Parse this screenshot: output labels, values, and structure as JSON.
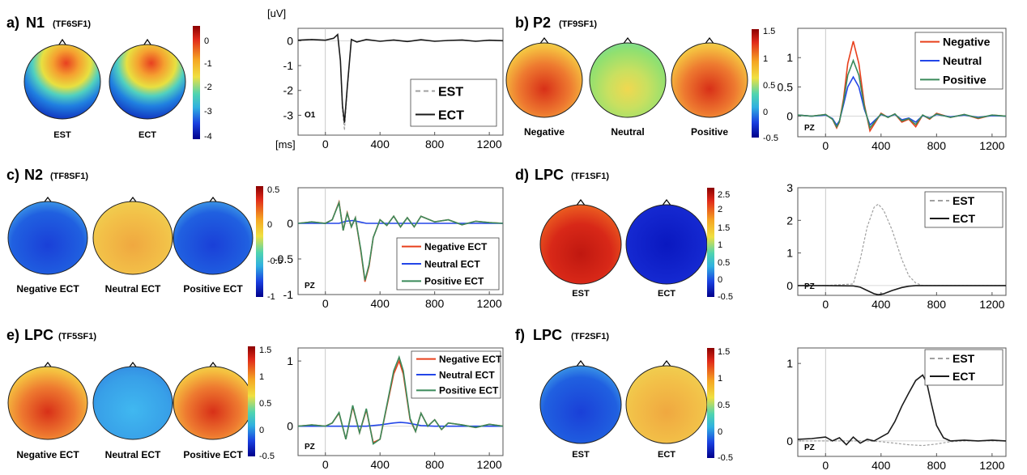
{
  "figure": {
    "panels": [
      {
        "id": "a",
        "label": "a)",
        "component": "N1",
        "factor": "(TF6SF1)",
        "maps": [
          {
            "label": "EST",
            "scheme": "n1"
          },
          {
            "label": "ECT",
            "scheme": "n1"
          }
        ],
        "colorbar": {
          "ticks": [
            "0",
            "-1",
            "-2",
            "-3",
            "-4"
          ]
        }
      },
      {
        "id": "b",
        "label": "b)",
        "component": "P2",
        "factor": "(TF9SF1)",
        "maps": [
          {
            "label": "Negative",
            "scheme": "warm"
          },
          {
            "label": "Neutral",
            "scheme": "green"
          },
          {
            "label": "Positive",
            "scheme": "warm"
          }
        ],
        "colorbar": {
          "ticks": [
            "1.5",
            "1",
            "0.5",
            "0",
            "-0.5"
          ]
        }
      },
      {
        "id": "c",
        "label": "c)",
        "component": "N2",
        "factor": "(TF8SF1)",
        "maps": [
          {
            "label": "Negative ECT",
            "scheme": "blue"
          },
          {
            "label": "Neutral ECT",
            "scheme": "yellow"
          },
          {
            "label": "Positive ECT",
            "scheme": "blue"
          }
        ],
        "colorbar": {
          "ticks": [
            "0.5",
            "0",
            "-0.5",
            "-1"
          ]
        }
      },
      {
        "id": "d",
        "label": "d)",
        "component": "LPC",
        "factor": "(TF1SF1)",
        "maps": [
          {
            "label": "EST",
            "scheme": "red"
          },
          {
            "label": "ECT",
            "scheme": "deepblue"
          }
        ],
        "colorbar": {
          "ticks": [
            "2.5",
            "2",
            "1.5",
            "1",
            "0.5",
            "0",
            "-0.5"
          ]
        }
      },
      {
        "id": "e",
        "label": "e)",
        "component": "LPC",
        "factor": "(TF5SF1)",
        "maps": [
          {
            "label": "Negative ECT",
            "scheme": "warm"
          },
          {
            "label": "Neutral ECT",
            "scheme": "lightblue"
          },
          {
            "label": "Positive ECT",
            "scheme": "warm"
          }
        ],
        "colorbar": {
          "ticks": [
            "1.5",
            "1",
            "0.5",
            "0",
            "-0.5"
          ]
        }
      },
      {
        "id": "f",
        "label": "f)",
        "component": "LPC",
        "factor": "(TF2SF1)",
        "maps": [
          {
            "label": "EST",
            "scheme": "blue"
          },
          {
            "label": "ECT",
            "scheme": "yellow"
          }
        ],
        "colorbar": {
          "ticks": [
            "1.5",
            "1",
            "0.5",
            "0",
            "-0.5"
          ]
        }
      }
    ]
  },
  "chart_data": [
    {
      "panel": "a",
      "type": "line",
      "ylabel": "[uV]",
      "xlabel": "[ms]",
      "channel": "O1",
      "xlim": [
        -200,
        1300
      ],
      "ylim": [
        -3.8,
        0.5
      ],
      "xticks": [
        0,
        400,
        800,
        1200
      ],
      "yticks": [
        0,
        -1,
        -2,
        -3
      ],
      "series": [
        {
          "name": "EST",
          "style": "dashed",
          "color": "#a0a0a0",
          "x": [
            -200,
            -100,
            0,
            60,
            90,
            110,
            125,
            140,
            160,
            190,
            230,
            300,
            400,
            500,
            600,
            700,
            800,
            900,
            1000,
            1100,
            1200,
            1300
          ],
          "y": [
            0.02,
            0.05,
            0.02,
            0.1,
            0.25,
            -0.8,
            -2.8,
            -3.6,
            -2.0,
            0.05,
            -0.05,
            0.05,
            -0.02,
            0.03,
            -0.03,
            0.04,
            -0.02,
            0.01,
            0.03,
            -0.02,
            0.02,
            0.0
          ]
        },
        {
          "name": "ECT",
          "style": "solid",
          "color": "#1a1a1a",
          "x": [
            -200,
            -100,
            0,
            60,
            90,
            110,
            125,
            140,
            160,
            190,
            230,
            300,
            400,
            500,
            600,
            700,
            800,
            900,
            1000,
            1100,
            1200,
            1300
          ],
          "y": [
            0.02,
            0.05,
            0.02,
            0.1,
            0.25,
            -0.8,
            -2.6,
            -3.3,
            -1.9,
            0.05,
            -0.05,
            0.05,
            -0.02,
            0.03,
            -0.03,
            0.04,
            -0.02,
            0.01,
            0.03,
            -0.02,
            0.02,
            0.0
          ]
        }
      ]
    },
    {
      "panel": "b",
      "type": "line",
      "channel": "PZ",
      "xlim": [
        -200,
        1300
      ],
      "ylim": [
        -0.35,
        1.5
      ],
      "xticks": [
        0,
        400,
        800,
        1200
      ],
      "yticks": [
        0,
        0.5,
        1
      ],
      "series": [
        {
          "name": "Negative",
          "style": "solid",
          "color": "#e8401c",
          "x": [
            -200,
            -100,
            0,
            50,
            80,
            100,
            130,
            160,
            200,
            240,
            280,
            320,
            360,
            400,
            450,
            500,
            550,
            600,
            650,
            700,
            750,
            800,
            900,
            1000,
            1100,
            1200,
            1300
          ],
          "y": [
            0.02,
            0.0,
            0.03,
            -0.05,
            -0.2,
            -0.1,
            0.3,
            0.9,
            1.28,
            0.9,
            0.2,
            -0.25,
            -0.1,
            0.05,
            -0.02,
            0.04,
            -0.1,
            -0.05,
            -0.18,
            0.02,
            -0.05,
            0.05,
            -0.02,
            0.03,
            -0.04,
            0.02,
            0.0
          ]
        },
        {
          "name": "Neutral",
          "style": "solid",
          "color": "#2346e8",
          "x": [
            -200,
            -100,
            0,
            50,
            80,
            100,
            130,
            160,
            200,
            240,
            280,
            320,
            360,
            400,
            450,
            500,
            550,
            600,
            650,
            700,
            750,
            800,
            900,
            1000,
            1100,
            1200,
            1300
          ],
          "y": [
            0.02,
            0.0,
            0.02,
            -0.04,
            -0.15,
            -0.08,
            0.2,
            0.5,
            0.67,
            0.5,
            0.12,
            -0.15,
            -0.06,
            0.03,
            -0.01,
            0.03,
            -0.06,
            -0.03,
            -0.1,
            0.01,
            -0.03,
            0.03,
            -0.01,
            0.02,
            -0.02,
            0.01,
            0.0
          ]
        },
        {
          "name": "Positive",
          "style": "solid",
          "color": "#3a8a5a",
          "x": [
            -200,
            -100,
            0,
            50,
            80,
            100,
            130,
            160,
            200,
            240,
            280,
            320,
            360,
            400,
            450,
            500,
            550,
            600,
            650,
            700,
            750,
            800,
            900,
            1000,
            1100,
            1200,
            1300
          ],
          "y": [
            0.02,
            0.0,
            0.03,
            -0.05,
            -0.18,
            -0.09,
            0.25,
            0.7,
            0.95,
            0.7,
            0.16,
            -0.2,
            -0.08,
            0.04,
            -0.02,
            0.04,
            -0.08,
            -0.04,
            -0.14,
            0.02,
            -0.04,
            0.04,
            -0.02,
            0.03,
            -0.03,
            0.02,
            0.0
          ]
        }
      ]
    },
    {
      "panel": "c",
      "type": "line",
      "channel": "PZ",
      "xlim": [
        -200,
        1300
      ],
      "ylim": [
        -1.0,
        0.5
      ],
      "xticks": [
        0,
        400,
        800,
        1200
      ],
      "yticks": [
        0,
        -0.5,
        -1
      ],
      "series": [
        {
          "name": "Negative ECT",
          "style": "solid",
          "color": "#e8401c",
          "x": [
            -200,
            -100,
            0,
            50,
            100,
            130,
            160,
            190,
            220,
            260,
            290,
            320,
            350,
            400,
            450,
            500,
            550,
            600,
            650,
            700,
            800,
            900,
            1000,
            1100,
            1200,
            1300
          ],
          "y": [
            0.0,
            0.02,
            0.0,
            0.05,
            0.3,
            -0.1,
            0.15,
            -0.05,
            0.08,
            -0.4,
            -0.82,
            -0.6,
            -0.2,
            0.05,
            -0.03,
            0.1,
            -0.05,
            0.08,
            -0.05,
            0.1,
            0.02,
            0.05,
            -0.02,
            0.03,
            0.01,
            0.0
          ]
        },
        {
          "name": "Neutral ECT",
          "style": "solid",
          "color": "#2346e8",
          "x": [
            -200,
            0,
            100,
            150,
            200,
            250,
            300,
            1300
          ],
          "y": [
            0.0,
            0.0,
            0.0,
            0.03,
            0.04,
            0.02,
            0.0,
            0.0
          ]
        },
        {
          "name": "Positive ECT",
          "style": "solid",
          "color": "#3a8a5a",
          "x": [
            -200,
            -100,
            0,
            50,
            100,
            130,
            160,
            190,
            220,
            260,
            290,
            320,
            350,
            400,
            450,
            500,
            550,
            600,
            650,
            700,
            800,
            900,
            1000,
            1100,
            1200,
            1300
          ],
          "y": [
            0.0,
            0.02,
            0.0,
            0.05,
            0.29,
            -0.1,
            0.14,
            -0.05,
            0.08,
            -0.38,
            -0.8,
            -0.58,
            -0.2,
            0.05,
            -0.03,
            0.1,
            -0.05,
            0.08,
            -0.05,
            0.1,
            0.02,
            0.05,
            -0.02,
            0.03,
            0.01,
            0.0
          ]
        }
      ]
    },
    {
      "panel": "d",
      "type": "line",
      "channel": "PZ",
      "xlim": [
        -200,
        1300
      ],
      "ylim": [
        -0.3,
        3.0
      ],
      "xticks": [
        0,
        400,
        800,
        1200
      ],
      "yticks": [
        0,
        1,
        2,
        3
      ],
      "series": [
        {
          "name": "EST",
          "style": "dashed",
          "color": "#a0a0a0",
          "x": [
            -200,
            0,
            200,
            250,
            300,
            350,
            380,
            420,
            480,
            550,
            600,
            650,
            700,
            800,
            1000,
            1300
          ],
          "y": [
            0.0,
            0.0,
            0.05,
            0.8,
            1.8,
            2.4,
            2.5,
            2.3,
            1.7,
            0.8,
            0.3,
            0.08,
            0.0,
            0.0,
            0.0,
            0.0
          ]
        },
        {
          "name": "ECT",
          "style": "solid",
          "color": "#1a1a1a",
          "x": [
            -200,
            0,
            200,
            250,
            300,
            350,
            380,
            420,
            480,
            550,
            600,
            650,
            700,
            800,
            1000,
            1300
          ],
          "y": [
            0.0,
            0.0,
            -0.01,
            -0.05,
            -0.15,
            -0.25,
            -0.28,
            -0.25,
            -0.15,
            -0.06,
            -0.02,
            0.0,
            0.0,
            0.0,
            0.0,
            0.0
          ]
        }
      ]
    },
    {
      "panel": "e",
      "type": "line",
      "channel": "PZ",
      "xlim": [
        -200,
        1300
      ],
      "ylim": [
        -0.45,
        1.2
      ],
      "xticks": [
        0,
        400,
        800,
        1200
      ],
      "yticks": [
        0,
        1
      ],
      "series": [
        {
          "name": "Negative ECT",
          "style": "solid",
          "color": "#e8401c",
          "x": [
            -200,
            -100,
            0,
            50,
            100,
            150,
            200,
            250,
            300,
            350,
            400,
            450,
            500,
            540,
            570,
            620,
            660,
            700,
            750,
            800,
            850,
            900,
            1000,
            1100,
            1200,
            1300
          ],
          "y": [
            0.0,
            0.02,
            0.0,
            0.05,
            0.2,
            -0.2,
            0.3,
            -0.1,
            0.25,
            -0.25,
            -0.2,
            0.3,
            0.8,
            1.0,
            0.8,
            0.1,
            -0.08,
            0.2,
            0.0,
            0.1,
            -0.05,
            0.05,
            0.02,
            -0.02,
            0.03,
            0.0
          ]
        },
        {
          "name": "Neutral ECT",
          "style": "solid",
          "color": "#2346e8",
          "x": [
            -200,
            0,
            300,
            400,
            500,
            550,
            600,
            650,
            700,
            800,
            1300
          ],
          "y": [
            0.0,
            0.0,
            0.0,
            0.02,
            0.05,
            0.06,
            0.05,
            0.03,
            0.01,
            0.0,
            0.0
          ]
        },
        {
          "name": "Positive ECT",
          "style": "solid",
          "color": "#3a8a5a",
          "x": [
            -200,
            -100,
            0,
            50,
            100,
            150,
            200,
            250,
            300,
            350,
            400,
            450,
            500,
            540,
            570,
            620,
            660,
            700,
            750,
            800,
            850,
            900,
            1000,
            1100,
            1200,
            1300
          ],
          "y": [
            0.0,
            0.02,
            0.0,
            0.05,
            0.21,
            -0.2,
            0.32,
            -0.1,
            0.27,
            -0.27,
            -0.2,
            0.32,
            0.85,
            1.06,
            0.85,
            0.12,
            -0.08,
            0.2,
            0.0,
            0.1,
            -0.05,
            0.05,
            0.02,
            -0.02,
            0.03,
            0.0
          ]
        }
      ]
    },
    {
      "panel": "f",
      "type": "line",
      "channel": "PZ",
      "xlim": [
        -200,
        1300
      ],
      "ylim": [
        -0.2,
        1.2
      ],
      "xticks": [
        0,
        400,
        800,
        1200
      ],
      "yticks": [
        0,
        1
      ],
      "series": [
        {
          "name": "EST",
          "style": "dashed",
          "color": "#a0a0a0",
          "x": [
            -200,
            0,
            300,
            400,
            500,
            600,
            700,
            800,
            900,
            1000,
            1300
          ],
          "y": [
            0.0,
            0.0,
            0.0,
            -0.01,
            -0.03,
            -0.05,
            -0.06,
            -0.04,
            -0.01,
            0.0,
            0.0
          ]
        },
        {
          "name": "ECT",
          "style": "solid",
          "color": "#1a1a1a",
          "x": [
            -200,
            -100,
            0,
            50,
            100,
            150,
            200,
            250,
            300,
            350,
            400,
            450,
            500,
            550,
            600,
            650,
            700,
            730,
            760,
            800,
            850,
            900,
            1000,
            1100,
            1200,
            1300
          ],
          "y": [
            0.02,
            0.03,
            0.05,
            0.0,
            0.04,
            -0.05,
            0.05,
            -0.03,
            0.02,
            0.0,
            0.05,
            0.1,
            0.25,
            0.45,
            0.62,
            0.78,
            0.85,
            0.75,
            0.5,
            0.2,
            0.04,
            0.0,
            0.01,
            0.0,
            0.01,
            0.0
          ]
        }
      ]
    }
  ]
}
